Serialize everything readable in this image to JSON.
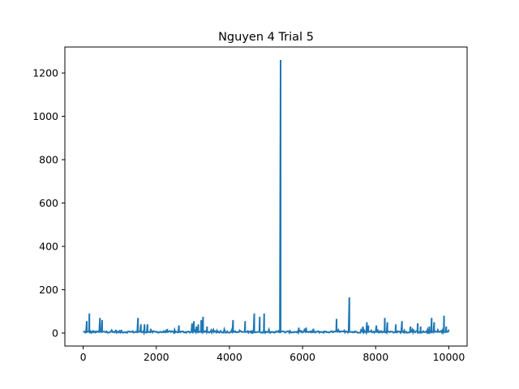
{
  "chart_data": {
    "type": "line",
    "title": "Nguyen 4 Trial 5",
    "xlabel": "",
    "ylabel": "",
    "xlim": [
      -500,
      10500
    ],
    "ylim": [
      -60,
      1320
    ],
    "x_ticks": [
      0,
      2000,
      4000,
      6000,
      8000,
      10000
    ],
    "x_tick_labels": [
      "0",
      "2000",
      "4000",
      "6000",
      "8000",
      "10000"
    ],
    "y_ticks": [
      0,
      200,
      400,
      600,
      800,
      1000,
      1200
    ],
    "y_tick_labels": [
      "0",
      "200",
      "400",
      "600",
      "800",
      "1000",
      "1200"
    ],
    "grid": false,
    "series": [
      {
        "name": "Nguyen 4 Trial 5",
        "color": "#1f77b4",
        "x_range": [
          0,
          10000
        ],
        "baseline": 5,
        "spikes": [
          {
            "x": 100,
            "y": 55
          },
          {
            "x": 170,
            "y": 90
          },
          {
            "x": 460,
            "y": 70
          },
          {
            "x": 520,
            "y": 60
          },
          {
            "x": 900,
            "y": 15
          },
          {
            "x": 1050,
            "y": 15
          },
          {
            "x": 1500,
            "y": 70
          },
          {
            "x": 1580,
            "y": 40
          },
          {
            "x": 1680,
            "y": 40
          },
          {
            "x": 1760,
            "y": 40
          },
          {
            "x": 1850,
            "y": 20
          },
          {
            "x": 2300,
            "y": 15
          },
          {
            "x": 2620,
            "y": 35
          },
          {
            "x": 2980,
            "y": 45
          },
          {
            "x": 3030,
            "y": 55
          },
          {
            "x": 3100,
            "y": 30
          },
          {
            "x": 3150,
            "y": 40
          },
          {
            "x": 3230,
            "y": 60
          },
          {
            "x": 3280,
            "y": 75
          },
          {
            "x": 3390,
            "y": 30
          },
          {
            "x": 4100,
            "y": 60
          },
          {
            "x": 4430,
            "y": 55
          },
          {
            "x": 4680,
            "y": 90
          },
          {
            "x": 4830,
            "y": 75
          },
          {
            "x": 4950,
            "y": 90
          },
          {
            "x": 5400,
            "y": 1260
          },
          {
            "x": 5900,
            "y": 25
          },
          {
            "x": 6100,
            "y": 25
          },
          {
            "x": 6300,
            "y": 20
          },
          {
            "x": 6930,
            "y": 65
          },
          {
            "x": 7280,
            "y": 165
          },
          {
            "x": 7650,
            "y": 30
          },
          {
            "x": 7760,
            "y": 50
          },
          {
            "x": 7800,
            "y": 35
          },
          {
            "x": 8020,
            "y": 35
          },
          {
            "x": 8250,
            "y": 70
          },
          {
            "x": 8320,
            "y": 50
          },
          {
            "x": 8550,
            "y": 40
          },
          {
            "x": 8720,
            "y": 55
          },
          {
            "x": 8950,
            "y": 30
          },
          {
            "x": 9150,
            "y": 45
          },
          {
            "x": 9230,
            "y": 30
          },
          {
            "x": 9470,
            "y": 30
          },
          {
            "x": 9530,
            "y": 70
          },
          {
            "x": 9600,
            "y": 50
          },
          {
            "x": 9870,
            "y": 80
          },
          {
            "x": 9930,
            "y": 30
          }
        ]
      }
    ]
  }
}
